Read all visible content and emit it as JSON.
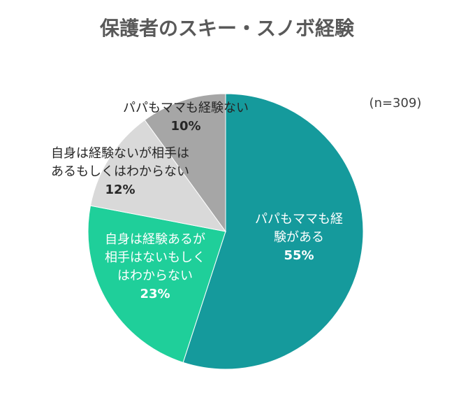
{
  "chart_data": {
    "type": "pie",
    "title": "保護者のスキー・スノボ経験",
    "note": "(n=309)",
    "categories": [
      "パパもママも経\n験がある",
      "自身は経験あるが\n相手はないもしく\nはわからない",
      "自身は経験ないが相手は\nあるもしくはわからない",
      "パパもママも経験ない"
    ],
    "values": [
      55,
      23,
      12,
      10
    ],
    "value_labels": [
      "55%",
      "23%",
      "12%",
      "10%"
    ],
    "colors": [
      "#159a9c",
      "#1fcf9a",
      "#d9d9d9",
      "#a6a6a6"
    ]
  }
}
